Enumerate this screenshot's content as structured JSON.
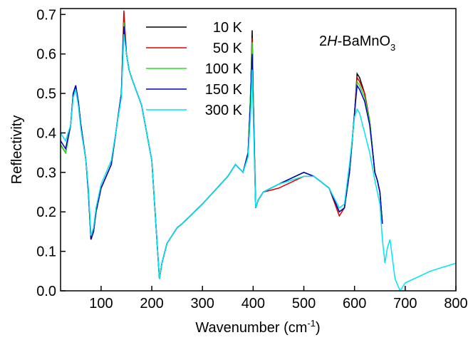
{
  "chart_data": {
    "type": "line",
    "y_label": "Reflectivity",
    "x_label": [
      "Wavenumber (cm",
      "-1",
      ")"
    ],
    "annotation": [
      "2",
      "H",
      "-BaMnO",
      "3"
    ],
    "xlim": [
      20,
      800
    ],
    "ylim": [
      0,
      0.715
    ],
    "xticks": [
      100,
      200,
      300,
      400,
      500,
      600,
      700,
      800
    ],
    "yticks": [
      {
        "value": 0,
        "label": "0.0"
      },
      0.1,
      0.2,
      0.3,
      0.4,
      0.5,
      0.6,
      0.7
    ],
    "x": [
      20,
      30,
      40,
      45,
      50,
      55,
      60,
      70,
      75,
      80,
      85,
      90,
      100,
      120,
      140,
      145,
      150,
      155,
      160,
      180,
      200,
      210,
      215,
      220,
      230,
      250,
      260,
      300,
      350,
      365,
      380,
      390,
      395,
      398,
      400,
      405,
      410,
      420,
      450,
      500,
      520,
      550,
      570,
      580,
      590,
      600,
      605,
      610,
      620,
      630,
      640,
      645,
      650,
      655,
      660,
      665,
      670,
      680,
      690,
      700,
      750,
      800
    ],
    "series": [
      {
        "name": "10 K",
        "color": "#000000",
        "values": [
          0.37,
          0.35,
          0.42,
          0.5,
          0.52,
          0.48,
          0.42,
          0.33,
          0.25,
          0.13,
          0.15,
          0.2,
          0.26,
          0.32,
          0.5,
          0.69,
          0.6,
          0.56,
          0.54,
          0.47,
          0.33,
          0.13,
          0.03,
          0.07,
          0.12,
          0.16,
          0.17,
          0.22,
          0.29,
          0.32,
          0.3,
          0.35,
          0.5,
          0.66,
          0.5,
          0.21,
          0.23,
          0.25,
          0.27,
          0.3,
          0.29,
          0.26,
          0.2,
          0.21,
          0.3,
          0.45,
          0.55,
          0.54,
          0.5,
          0.43,
          0.3,
          0.28,
          0.25,
          0.17,
          null,
          null,
          null,
          null,
          null,
          null,
          null,
          null
        ]
      },
      {
        "name": "50 K",
        "color": "#e00000",
        "values": [
          0.37,
          0.35,
          0.42,
          0.5,
          0.52,
          0.48,
          0.42,
          0.33,
          0.25,
          0.13,
          0.15,
          0.2,
          0.26,
          0.32,
          0.5,
          0.71,
          0.6,
          0.56,
          0.54,
          0.47,
          0.33,
          0.13,
          0.03,
          0.07,
          0.12,
          0.16,
          0.17,
          0.22,
          0.29,
          0.32,
          0.3,
          0.35,
          0.5,
          0.64,
          0.5,
          0.21,
          0.23,
          0.25,
          0.26,
          0.29,
          0.29,
          0.26,
          0.19,
          0.21,
          0.3,
          0.45,
          0.54,
          0.53,
          0.5,
          0.43,
          0.3,
          0.28,
          0.25,
          0.17,
          null,
          null,
          null,
          null,
          null,
          null,
          null,
          null
        ]
      },
      {
        "name": "100 K",
        "color": "#22dd22",
        "values": [
          0.37,
          0.35,
          0.42,
          0.5,
          0.52,
          0.48,
          0.42,
          0.33,
          0.25,
          0.13,
          0.15,
          0.2,
          0.26,
          0.32,
          0.5,
          0.68,
          0.6,
          0.56,
          0.54,
          0.47,
          0.33,
          0.13,
          0.03,
          0.07,
          0.12,
          0.16,
          0.17,
          0.22,
          0.29,
          0.32,
          0.3,
          0.35,
          0.5,
          0.63,
          0.5,
          0.21,
          0.23,
          0.25,
          0.27,
          0.3,
          0.29,
          0.26,
          0.2,
          0.21,
          0.3,
          0.45,
          0.53,
          0.52,
          0.49,
          0.43,
          0.3,
          0.28,
          0.25,
          0.17,
          null,
          null,
          null,
          null,
          null,
          null,
          null,
          null
        ]
      },
      {
        "name": "150 K",
        "color": "#0000c0",
        "values": [
          0.38,
          0.36,
          0.42,
          0.5,
          0.52,
          0.48,
          0.42,
          0.33,
          0.25,
          0.13,
          0.15,
          0.2,
          0.26,
          0.32,
          0.5,
          0.67,
          0.6,
          0.56,
          0.54,
          0.47,
          0.33,
          0.13,
          0.03,
          0.07,
          0.12,
          0.16,
          0.17,
          0.22,
          0.29,
          0.32,
          0.3,
          0.35,
          0.48,
          0.6,
          0.48,
          0.21,
          0.23,
          0.25,
          0.27,
          0.3,
          0.29,
          0.26,
          0.2,
          0.21,
          0.3,
          0.45,
          0.52,
          0.51,
          0.48,
          0.42,
          0.3,
          0.28,
          0.25,
          0.17,
          null,
          null,
          null,
          null,
          null,
          null,
          null,
          null
        ]
      },
      {
        "name": "300 K",
        "color": "#00e5f0",
        "values": [
          0.4,
          0.38,
          0.42,
          0.49,
          0.51,
          0.47,
          0.41,
          0.33,
          0.26,
          0.14,
          0.16,
          0.21,
          0.27,
          0.33,
          0.49,
          0.65,
          0.6,
          0.56,
          0.54,
          0.47,
          0.33,
          0.13,
          0.03,
          0.07,
          0.12,
          0.16,
          0.17,
          0.22,
          0.29,
          0.32,
          0.3,
          0.34,
          0.45,
          0.56,
          0.45,
          0.21,
          0.23,
          0.25,
          0.27,
          0.29,
          0.29,
          0.26,
          0.21,
          0.22,
          0.32,
          0.44,
          0.46,
          0.45,
          0.4,
          0.35,
          0.28,
          0.25,
          0.22,
          0.13,
          0.07,
          0.11,
          0.13,
          0.03,
          0.0,
          0.02,
          0.05,
          0.07
        ]
      }
    ]
  }
}
